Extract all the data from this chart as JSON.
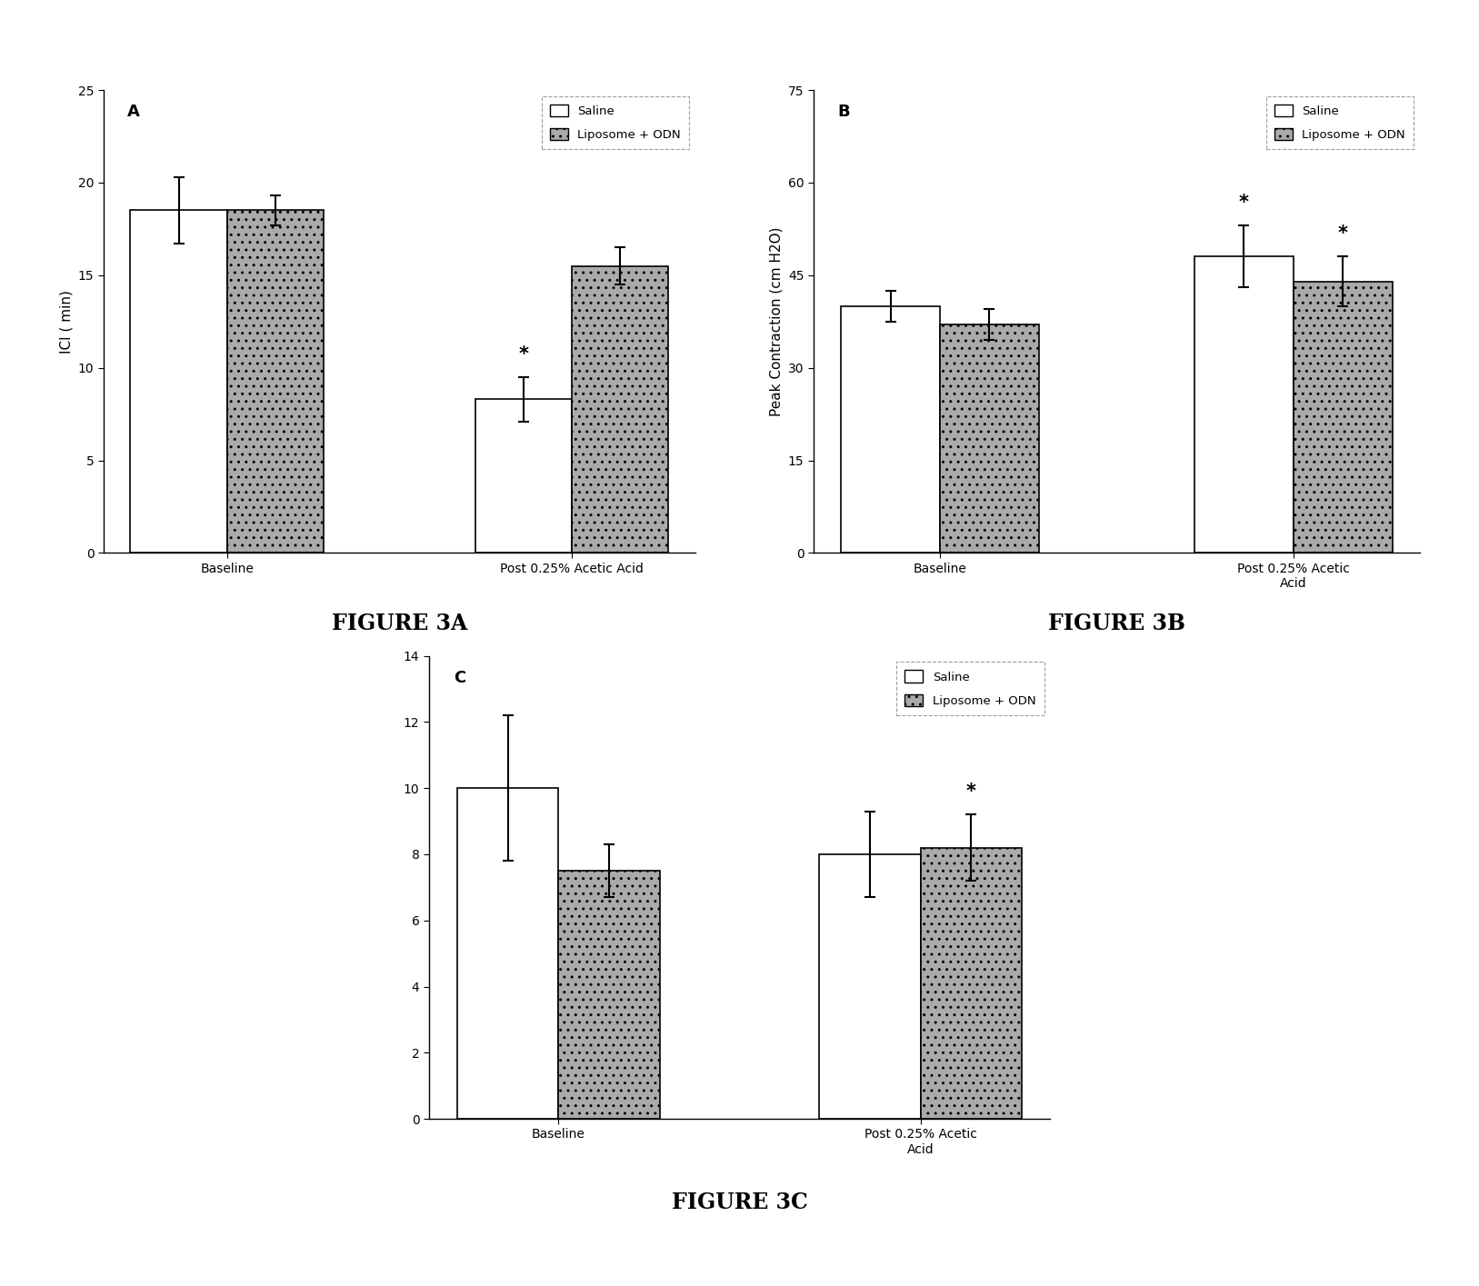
{
  "panel_A": {
    "title_label": "A",
    "ylabel": "ICI ( min)",
    "ylim": [
      0,
      25
    ],
    "yticks": [
      0,
      5,
      10,
      15,
      20,
      25
    ],
    "xtick_labels": [
      "Baseline",
      "Post 0.25% Acetic Acid"
    ],
    "saline_values": [
      18.5,
      8.3
    ],
    "odn_values": [
      18.5,
      15.5
    ],
    "saline_errors": [
      1.8,
      1.2
    ],
    "odn_errors": [
      0.8,
      1.0
    ],
    "sig_saline": [
      false,
      true
    ],
    "sig_odn": [
      false,
      false
    ],
    "figure_label": "FIGURE 3A"
  },
  "panel_B": {
    "title_label": "B",
    "ylabel": "Peak Contraction (cm H2O)",
    "ylim": [
      0,
      75
    ],
    "yticks": [
      0,
      15,
      30,
      45,
      60,
      75
    ],
    "xtick_labels": [
      "Baseline",
      "Post 0.25% Acetic\nAcid"
    ],
    "saline_values": [
      40,
      48
    ],
    "odn_values": [
      37,
      44
    ],
    "saline_errors": [
      2.5,
      5.0
    ],
    "odn_errors": [
      2.5,
      4.0
    ],
    "sig_saline": [
      false,
      true
    ],
    "sig_odn": [
      false,
      true
    ],
    "figure_label": "FIGURE 3B"
  },
  "panel_C": {
    "title_label": "C",
    "ylabel": "",
    "ylim": [
      0,
      14
    ],
    "yticks": [
      0,
      2,
      4,
      6,
      8,
      10,
      12,
      14
    ],
    "xtick_labels": [
      "Baseline",
      "Post 0.25% Acetic\nAcid"
    ],
    "saline_values": [
      10.0,
      8.0
    ],
    "odn_values": [
      7.5,
      8.2
    ],
    "saline_errors": [
      2.2,
      1.3
    ],
    "odn_errors": [
      0.8,
      1.0
    ],
    "sig_saline": [
      false,
      false
    ],
    "sig_odn": [
      false,
      true
    ],
    "figure_label": "FIGURE 3C"
  },
  "bar_width": 0.28,
  "saline_color": "#ffffff",
  "odn_color": "#aaaaaa",
  "edge_color": "#000000",
  "legend_labels": [
    "Saline",
    "Liposome + ODN"
  ],
  "background_color": "#ffffff",
  "hatch_odn": ".."
}
